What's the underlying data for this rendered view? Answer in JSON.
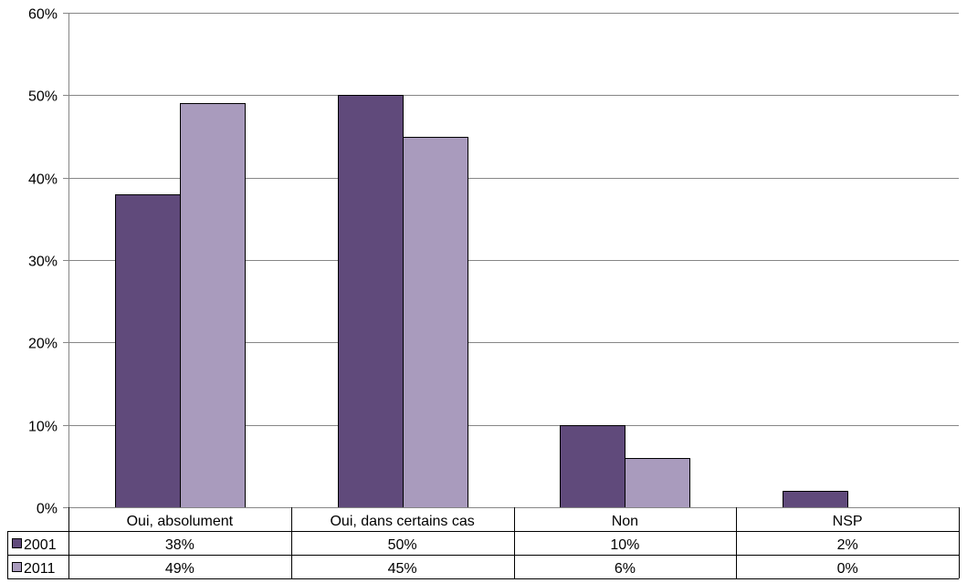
{
  "chart_data": {
    "type": "bar",
    "categories": [
      "Oui, absolument",
      "Oui, dans certains cas",
      "Non",
      "NSP"
    ],
    "series": [
      {
        "name": "2001",
        "values": [
          38,
          50,
          10,
          2
        ],
        "labels": [
          "38%",
          "50%",
          "10%",
          "2%"
        ],
        "color": "#604A7B"
      },
      {
        "name": "2011",
        "values": [
          49,
          45,
          6,
          0
        ],
        "labels": [
          "49%",
          "45%",
          "6%",
          "0%"
        ],
        "color": "#A99BBD"
      }
    ],
    "ylim": [
      0,
      60
    ],
    "yticks": [
      "0%",
      "10%",
      "20%",
      "30%",
      "40%",
      "50%",
      "60%"
    ],
    "xlabel": "",
    "ylabel": "",
    "grid": true,
    "legend": "data-table"
  }
}
